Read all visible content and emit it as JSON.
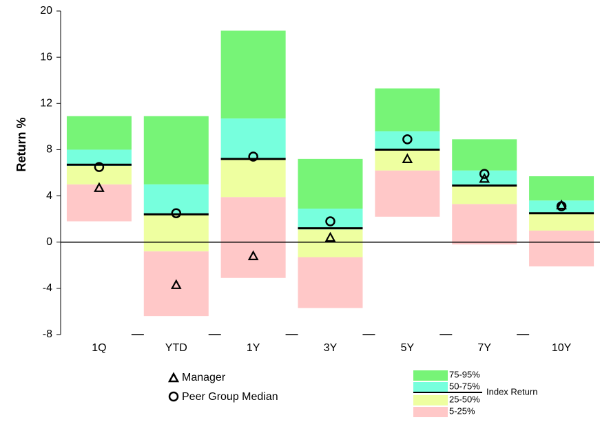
{
  "chart_data": {
    "type": "floating-bar",
    "y_label": "Return %",
    "categories": [
      "1Q",
      "YTD",
      "1Y",
      "3Y",
      "5Y",
      "7Y",
      "10Y"
    ],
    "boundaries": [
      {
        "name": "5th",
        "values": [
          1.8,
          -6.4,
          -3.1,
          -5.7,
          2.2,
          -0.2,
          -2.1
        ]
      },
      {
        "name": "25th",
        "values": [
          5.0,
          -0.8,
          3.9,
          -1.3,
          6.2,
          3.3,
          1.0
        ]
      },
      {
        "name": "50th",
        "values": [
          6.6,
          2.4,
          7.2,
          1.1,
          8.0,
          4.9,
          2.5
        ]
      },
      {
        "name": "75th",
        "values": [
          8.0,
          5.0,
          10.7,
          2.9,
          9.6,
          6.2,
          3.6
        ]
      },
      {
        "name": "95th",
        "values": [
          10.9,
          10.9,
          18.3,
          7.2,
          13.3,
          8.9,
          5.7
        ]
      }
    ],
    "bands": [
      {
        "name": "5-25%",
        "color": "#ffc8c8"
      },
      {
        "name": "25-50%",
        "color": "#eeffa0"
      },
      {
        "name": "50-75%",
        "color": "#77ffdd"
      },
      {
        "name": "75-95%",
        "color": "#77f477"
      }
    ],
    "index": {
      "name": "Index Return",
      "values": [
        6.7,
        2.4,
        7.2,
        1.2,
        8.0,
        4.9,
        2.5
      ]
    },
    "manager": {
      "name": "Manager",
      "values": [
        4.7,
        -3.7,
        -1.2,
        0.4,
        7.2,
        5.5,
        3.2
      ]
    },
    "median": {
      "name": "Peer Group Median",
      "values": [
        6.5,
        2.5,
        7.4,
        1.8,
        8.9,
        5.9,
        3.1
      ]
    },
    "ylim": [
      -8,
      20
    ],
    "yticks": [
      -8,
      -4,
      0,
      4,
      8,
      12,
      16,
      20
    ]
  }
}
